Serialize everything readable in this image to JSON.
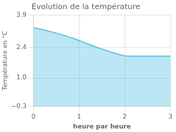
{
  "chart_data": {
    "type": "area",
    "title": "Evolution de la température",
    "xlabel": "heure par heure",
    "ylabel": "Température en °C",
    "x": [
      0,
      0.05,
      0.1,
      0.2,
      0.3,
      0.4,
      0.5,
      0.6,
      0.7,
      0.8,
      0.9,
      1.0,
      1.1,
      1.2,
      1.3,
      1.4,
      1.5,
      1.6,
      1.7,
      1.8,
      1.9,
      2.0,
      2.1,
      2.2,
      2.3,
      2.4,
      2.5,
      2.6,
      2.7,
      2.8,
      2.9,
      3.0
    ],
    "values": [
      3.3,
      3.29,
      3.27,
      3.22,
      3.17,
      3.12,
      3.06,
      3.0,
      2.94,
      2.87,
      2.8,
      2.72,
      2.64,
      2.56,
      2.48,
      2.4,
      2.33,
      2.26,
      2.19,
      2.13,
      2.07,
      2.02,
      2.0,
      2.0,
      2.0,
      2.0,
      2.0,
      2.0,
      2.0,
      2.0,
      2.0,
      2.0
    ],
    "color": "#55c0e0",
    "xlim": [
      0,
      3
    ],
    "ylim": [
      -0.3,
      3.9
    ],
    "xticks": [
      0,
      1,
      2,
      3
    ],
    "yticks": [
      {
        "value": -0.3,
        "label": "−0.3"
      },
      {
        "value": 1.0,
        "label": "1.0"
      },
      {
        "value": 2.4,
        "label": "2.4"
      },
      {
        "value": 3.9,
        "label": "3.9"
      }
    ],
    "grid": true
  }
}
